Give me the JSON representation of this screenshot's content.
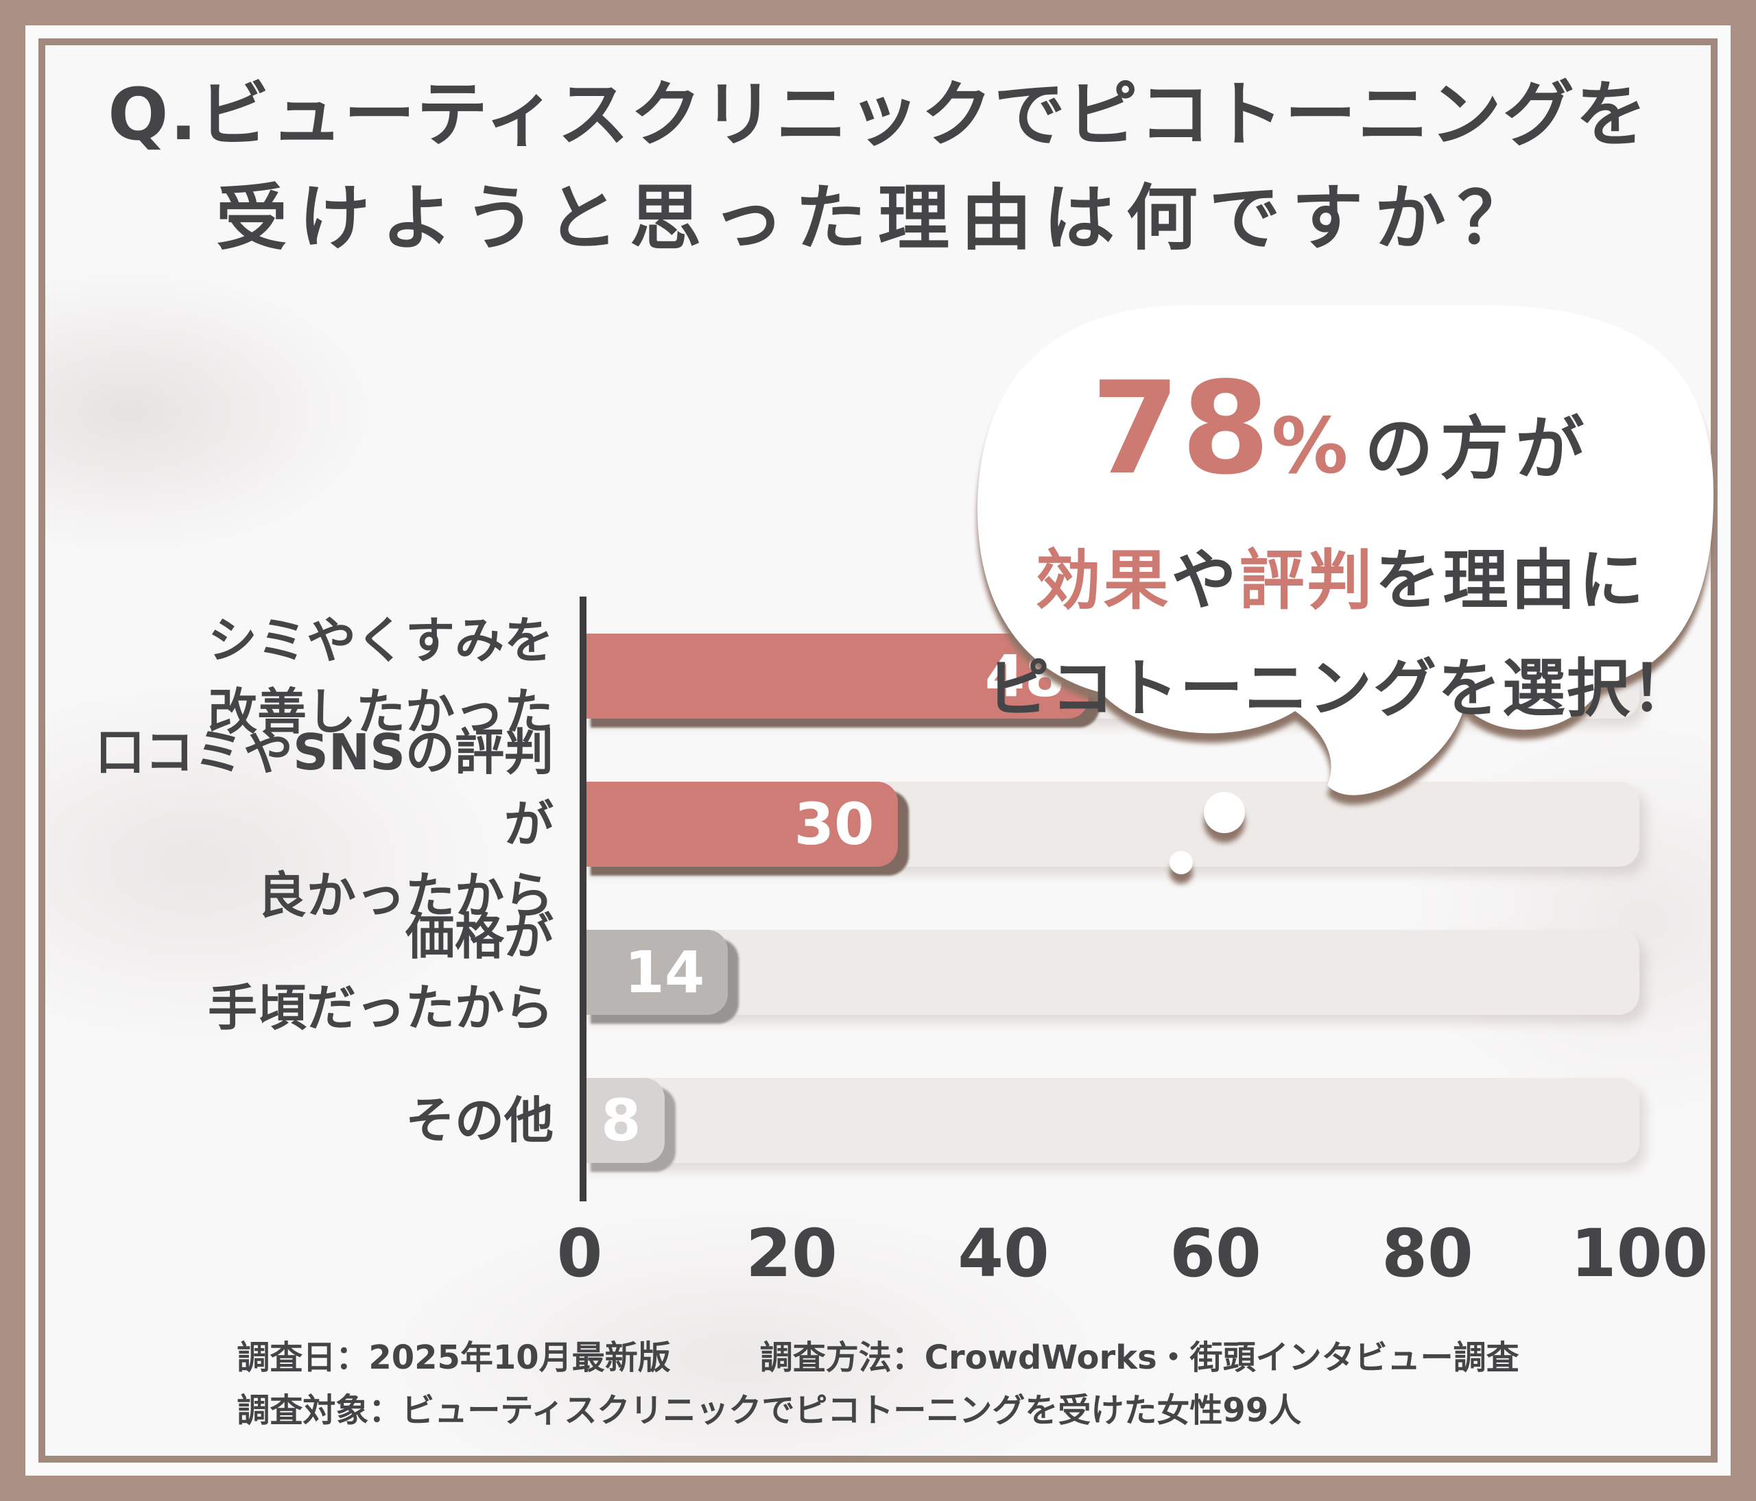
{
  "title": {
    "line1": "Q.ビューティスクリニックでピコトーニングを",
    "line2": "受けようと思った理由は何ですか？"
  },
  "bubble": {
    "stat": "78",
    "stat_unit": "%",
    "stat_suffix": "の方が",
    "line2": [
      {
        "text": "効果",
        "accent": true
      },
      {
        "text": "や",
        "accent": false
      },
      {
        "text": "評判",
        "accent": true
      },
      {
        "text": "を理由に",
        "accent": false
      }
    ],
    "line3": "ピコトーニングを選択！"
  },
  "chart_data": {
    "type": "bar",
    "orientation": "horizontal",
    "categories": [
      "シミやくすみを改善したかった",
      "口コミやSNSの評判が良かったから",
      "価格が手頃だったから",
      "その他"
    ],
    "values": [
      48,
      30,
      14,
      8
    ],
    "xlim": [
      0,
      100
    ],
    "x_ticks": [
      0,
      20,
      40,
      60,
      80,
      100
    ],
    "grid": false,
    "rows": [
      {
        "label_lines": [
          "シミやくすみを",
          "改善したかった"
        ],
        "value": 48,
        "bar_color": "#cf7c76",
        "shadow_color": "#7e6a60"
      },
      {
        "label_lines": [
          "口コミやSNSの評判が",
          "良かったから"
        ],
        "value": 30,
        "bar_color": "#cf7c76",
        "shadow_color": "#7e6a60"
      },
      {
        "label_lines": [
          "価格が",
          "手頃だったから"
        ],
        "value": 14,
        "bar_color": "#b8b5b3",
        "shadow_color": "#989492"
      },
      {
        "label_lines": [
          "その他"
        ],
        "value": 8,
        "bar_color": "#d6d3d1",
        "shadow_color": "#a8a4a1"
      }
    ]
  },
  "footer": {
    "line1_left": "調査日：2025年10月最新版",
    "line1_right": "調査方法：CrowdWorks・街頭インタビュー調査",
    "line2": "調査対象：ビューティスクリニックでピコトーニングを受けた女性99人"
  },
  "colors": {
    "frame": "#ab9084",
    "frame_line": "#a1897d",
    "content_bg": "#f9f8f8",
    "text_dark": "#454447",
    "accent_pink": "#cd7a72",
    "bar_pink": "#cf7c76",
    "track": "#edeae8",
    "axis": "#3e3c3c",
    "bubble_shadow": "#8d7467",
    "value_text": "#ffffff"
  }
}
